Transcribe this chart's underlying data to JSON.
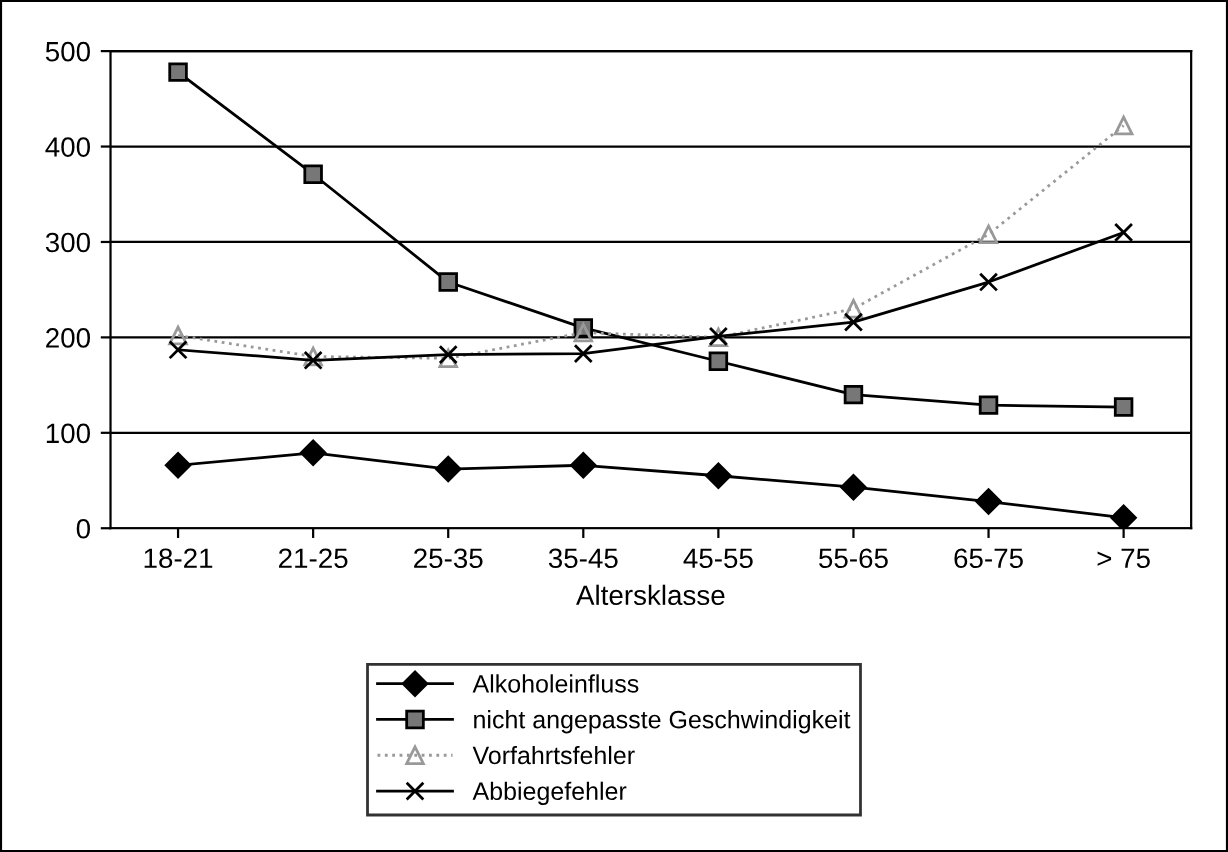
{
  "chart_data": {
    "type": "line",
    "xlabel": "Altersklasse",
    "categories": [
      "18-21",
      "21-25",
      "25-35",
      "35-45",
      "45-55",
      "55-65",
      "65-75",
      "> 75"
    ],
    "ylim": [
      0,
      500
    ],
    "yticks": [
      0,
      100,
      200,
      300,
      400,
      500
    ],
    "grid": "y",
    "legend": "bottom",
    "series": [
      {
        "name": "Alkoholeinfluss",
        "color": "#000000",
        "marker": "diamond",
        "line_style": "solid",
        "values": [
          66,
          79,
          62,
          66,
          55,
          43,
          28,
          11
        ]
      },
      {
        "name": "nicht angepasste Geschwindigkeit",
        "color": "#000000",
        "marker": "square",
        "line_style": "solid",
        "values": [
          478,
          371,
          258,
          210,
          175,
          140,
          129,
          127
        ]
      },
      {
        "name": "Vorfahrtsfehler",
        "color": "#999999",
        "marker": "triangle",
        "line_style": "dotted",
        "values": [
          202,
          180,
          178,
          205,
          200,
          230,
          308,
          422
        ]
      },
      {
        "name": "Abbiegefehler",
        "color": "#000000",
        "marker": "cross",
        "line_style": "solid",
        "values": [
          187,
          176,
          182,
          183,
          201,
          216,
          258,
          310
        ]
      }
    ]
  }
}
